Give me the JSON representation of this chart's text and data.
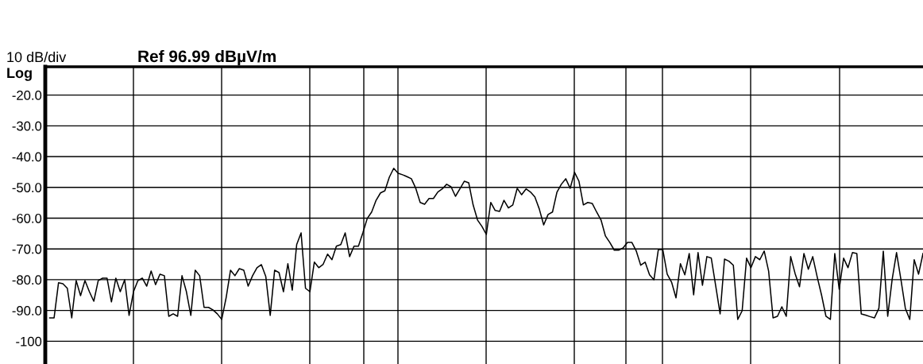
{
  "chart_data": {
    "type": "line",
    "title": "Ref 96.99 dBµV/m",
    "annotations": [
      "10 dB/div",
      "Log"
    ],
    "categories": [
      null,
      null,
      null,
      null,
      null,
      null,
      null,
      null,
      null,
      null,
      null,
      null,
      null,
      null,
      null,
      null,
      null,
      null,
      null,
      null,
      null,
      null,
      null,
      null,
      null,
      null,
      null,
      null,
      null,
      null,
      null,
      null,
      null,
      null,
      null,
      null,
      null,
      null,
      null,
      null,
      null,
      null,
      null,
      null,
      null,
      null,
      null,
      null,
      null,
      null,
      null,
      null,
      null,
      null,
      null,
      null,
      null,
      null,
      null,
      null,
      null,
      null,
      null,
      null,
      null,
      null,
      null,
      null,
      null,
      null,
      null,
      null,
      null,
      null,
      null,
      null,
      null,
      null,
      null,
      null,
      null,
      null,
      null,
      null,
      null,
      null,
      null,
      null,
      null,
      null,
      null,
      null,
      null,
      null,
      null,
      null,
      null,
      null,
      null,
      null,
      null,
      null,
      null,
      null,
      null,
      null,
      null,
      null,
      null,
      null,
      null,
      null,
      null,
      null,
      null,
      null,
      null,
      null,
      null,
      null,
      null,
      null,
      null,
      null,
      null,
      null,
      null,
      null,
      null,
      null,
      null,
      null,
      null,
      null,
      null,
      null,
      null,
      null,
      null,
      null,
      null,
      null,
      null,
      null,
      null,
      null,
      null,
      null,
      null,
      null,
      null,
      null,
      null,
      null,
      null,
      null,
      null,
      null,
      null,
      null,
      null,
      null,
      null,
      null,
      null,
      null,
      null,
      null,
      null,
      null,
      null,
      null,
      null,
      null,
      null,
      null,
      null,
      null,
      null,
      null,
      null,
      null,
      null,
      null,
      null,
      null,
      null,
      null,
      null,
      null,
      null,
      null,
      null,
      null,
      null,
      null,
      null,
      null,
      null
    ],
    "series": [
      {
        "color": "#000000",
        "values": [
          -92.4,
          -92.4,
          -81.0,
          -81.3,
          -82.8,
          -92.4,
          -80.3,
          -85.2,
          -80.3,
          -83.9,
          -87.0,
          -80.3,
          -79.5,
          -79.5,
          -87.2,
          -79.5,
          -83.9,
          -80.0,
          -91.6,
          -83.9,
          -80.3,
          -79.5,
          -82.1,
          -77.2,
          -81.6,
          -78.2,
          -78.7,
          -91.9,
          -91.1,
          -91.9,
          -78.7,
          -83.9,
          -91.6,
          -76.9,
          -78.7,
          -89.0,
          -89.0,
          -89.8,
          -91.1,
          -92.9,
          -85.9,
          -76.9,
          -78.7,
          -76.4,
          -76.9,
          -82.1,
          -78.7,
          -76.1,
          -75.1,
          -79.0,
          -91.6,
          -76.9,
          -77.7,
          -83.9,
          -74.8,
          -83.4,
          -68.6,
          -64.8,
          -82.8,
          -83.9,
          -74.3,
          -76.1,
          -75.0,
          -71.7,
          -73.5,
          -69.1,
          -68.6,
          -64.8,
          -72.5,
          -69.1,
          -69.1,
          -64.8,
          -60.1,
          -58.0,
          -54.2,
          -51.8,
          -51.1,
          -46.7,
          -43.8,
          -45.4,
          -45.9,
          -46.5,
          -47.2,
          -50.3,
          -54.9,
          -55.5,
          -53.6,
          -53.6,
          -51.5,
          -50.5,
          -49.0,
          -49.8,
          -52.9,
          -50.5,
          -48.0,
          -48.5,
          -55.7,
          -60.6,
          -62.7,
          -65.3,
          -54.9,
          -57.5,
          -57.8,
          -54.2,
          -56.7,
          -55.7,
          -50.3,
          -52.4,
          -50.5,
          -51.5,
          -53.1,
          -57.0,
          -62.2,
          -58.8,
          -58.0,
          -51.6,
          -49.0,
          -47.2,
          -50.3,
          -45.1,
          -48.0,
          -55.7,
          -54.9,
          -55.2,
          -58.0,
          -60.6,
          -65.8,
          -67.9,
          -70.4,
          -70.4,
          -69.7,
          -67.9,
          -67.9,
          -70.7,
          -75.3,
          -74.3,
          -78.4,
          -80.0,
          -70.2,
          -70.2,
          -78.2,
          -80.8,
          -85.9,
          -74.8,
          -78.4,
          -71.5,
          -84.9,
          -71.2,
          -81.8,
          -72.5,
          -73.0,
          -82.0,
          -91.1,
          -73.3,
          -74.0,
          -75.3,
          -92.9,
          -90.1,
          -73.0,
          -76.1,
          -72.5,
          -73.5,
          -70.7,
          -77.2,
          -92.4,
          -91.9,
          -88.8,
          -91.9,
          -72.5,
          -78.0,
          -82.3,
          -71.5,
          -76.6,
          -72.5,
          -79.0,
          -85.0,
          -91.9,
          -92.9,
          -71.5,
          -83.1,
          -73.0,
          -76.1,
          -71.2,
          -71.5,
          -91.1,
          -91.5,
          -92.0,
          -92.4,
          -89.3,
          -70.7,
          -91.9,
          -80.0,
          -71.2,
          -80.0,
          -89.3,
          -92.9,
          -73.5,
          -78.2,
          -71.5
        ]
      }
    ],
    "ylim": [
      -107.4,
      -10.8
    ],
    "yticks": [
      {
        "value": -20,
        "label": "-20.0"
      },
      {
        "value": -30,
        "label": "-30.0"
      },
      {
        "value": -40,
        "label": "-40.0"
      },
      {
        "value": -50,
        "label": "-50.0"
      },
      {
        "value": -60,
        "label": "-60.0"
      },
      {
        "value": -70,
        "label": "-70.0"
      },
      {
        "value": -80,
        "label": "-80.0"
      },
      {
        "value": -90,
        "label": "-90.0"
      },
      {
        "value": -100,
        "label": "-100"
      }
    ],
    "grid": "y",
    "line_style": "solid"
  }
}
